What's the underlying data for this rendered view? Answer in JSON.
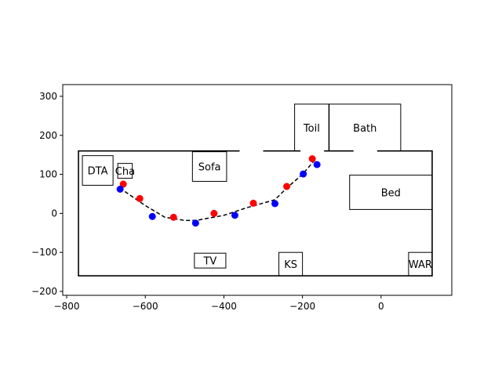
{
  "chart_data": {
    "type": "scatter",
    "title": "",
    "xlabel": "",
    "ylabel": "",
    "xlim": [
      -810,
      180
    ],
    "ylim": [
      -210,
      330
    ],
    "xticks": [
      -800,
      -600,
      -400,
      -200,
      0
    ],
    "yticks": [
      -200,
      -100,
      0,
      100,
      200,
      300
    ],
    "grid": false,
    "legend": "none",
    "colors": {
      "red": "#ff0000",
      "blue": "#0000ff",
      "path": "#000000",
      "room": "#000000"
    },
    "walls": {
      "x0": -770,
      "x1": 130,
      "y0": -160,
      "y1": 160
    },
    "wall_gaps": [
      {
        "x0": -360,
        "x1": -300,
        "y": 160
      },
      {
        "x0": -205,
        "x1": -145,
        "y": 160
      },
      {
        "x0": -70,
        "x1": -10,
        "y": 160
      }
    ],
    "rooms": [
      {
        "label": "DTA",
        "x0": -760,
        "x1": -682,
        "y0": 72,
        "y1": 148
      },
      {
        "label": "Cha",
        "x0": -670,
        "x1": -633,
        "y0": 90,
        "y1": 128
      },
      {
        "label": "Sofa",
        "x0": -480,
        "x1": -393,
        "y0": 82,
        "y1": 158
      },
      {
        "label": "Toil",
        "x0": -220,
        "x1": -133,
        "y0": 160,
        "y1": 280
      },
      {
        "label": "Bath",
        "x0": -132,
        "x1": 50,
        "y0": 160,
        "y1": 280
      },
      {
        "label": "Bed",
        "x0": -80,
        "x1": 130,
        "y0": 10,
        "y1": 98
      },
      {
        "label": "TV",
        "x0": -475,
        "x1": -395,
        "y0": -140,
        "y1": -102
      },
      {
        "label": "KS",
        "x0": -260,
        "x1": -200,
        "y0": -160,
        "y1": -100
      },
      {
        "label": "WAR",
        "x0": 70,
        "x1": 130,
        "y0": -160,
        "y1": -100
      }
    ],
    "path": {
      "x": [
        -665,
        -600,
        -550,
        -500,
        -470,
        -400,
        -340,
        -270,
        -240,
        -200,
        -170,
        -160
      ],
      "y": [
        65,
        20,
        -10,
        -18,
        -18,
        -5,
        15,
        35,
        65,
        100,
        135,
        125
      ]
    },
    "series": [
      {
        "color": "red",
        "x": [
          -656,
          -614,
          -528,
          -425,
          -325,
          -240,
          -175
        ],
        "y": [
          75,
          38,
          -10,
          0,
          26,
          69,
          140
        ]
      },
      {
        "color": "blue",
        "x": [
          -664,
          -582,
          -472,
          -372,
          -270,
          -198,
          -163
        ],
        "y": [
          62,
          -8,
          -25,
          -5,
          25,
          101,
          125
        ]
      }
    ]
  }
}
